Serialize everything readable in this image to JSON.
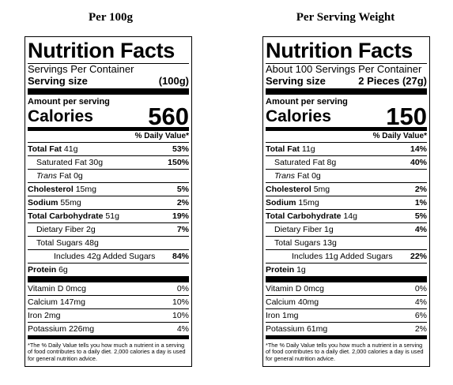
{
  "headings": {
    "left": "Per 100g",
    "right": "Per Serving Weight"
  },
  "labels": [
    {
      "title": "Nutrition Facts",
      "servings_per_container": "Servings Per Container",
      "serving_size_label": "Serving size",
      "serving_size_value": "(100g)",
      "amount_per_serving": "Amount per serving",
      "calories_label": "Calories",
      "calories_value": "560",
      "daily_value_header": "% Daily Value*",
      "rows": {
        "total_fat": {
          "name": "Total Fat",
          "amount": "41g",
          "dv": "53%"
        },
        "saturated_fat": {
          "name": "Saturated Fat",
          "amount": "30g",
          "dv": "150%"
        },
        "trans_fat": {
          "name": "Trans",
          "suffix": "Fat",
          "amount": "0g"
        },
        "cholesterol": {
          "name": "Cholesterol",
          "amount": "15mg",
          "dv": "5%"
        },
        "sodium": {
          "name": "Sodium",
          "amount": "55mg",
          "dv": "2%"
        },
        "total_carbohydrate": {
          "name": "Total Carbohydrate",
          "amount": "51g",
          "dv": "19%"
        },
        "dietary_fiber": {
          "name": "Dietary Fiber",
          "amount": "2g",
          "dv": "7%"
        },
        "total_sugars": {
          "name": "Total Sugars",
          "amount": "48g"
        },
        "added_sugars": {
          "name": "Includes 42g Added Sugars",
          "dv": "84%"
        },
        "protein": {
          "name": "Protein",
          "amount": "6g"
        },
        "vitamin_d": {
          "name": "Vitamin D",
          "amount": "0mcg",
          "dv": "0%"
        },
        "calcium": {
          "name": "Calcium",
          "amount": "147mg",
          "dv": "10%"
        },
        "iron": {
          "name": "Iron",
          "amount": "2mg",
          "dv": "10%"
        },
        "potassium": {
          "name": "Potassium",
          "amount": "226mg",
          "dv": "4%"
        }
      },
      "footnote": "*The % Daily Value tells you how much a nutrient in a serving of food contributes to a daily diet. 2,000 calories a day is used for general nutrition advice."
    },
    {
      "title": "Nutrition Facts",
      "servings_per_container": "About 100 Servings Per Container",
      "serving_size_label": "Serving size",
      "serving_size_value": "2 Pieces (27g)",
      "amount_per_serving": "Amount per serving",
      "calories_label": "Calories",
      "calories_value": "150",
      "daily_value_header": "% Daily Value*",
      "rows": {
        "total_fat": {
          "name": "Total Fat",
          "amount": "11g",
          "dv": "14%"
        },
        "saturated_fat": {
          "name": "Saturated Fat",
          "amount": "8g",
          "dv": "40%"
        },
        "trans_fat": {
          "name": "Trans",
          "suffix": "Fat",
          "amount": "0g"
        },
        "cholesterol": {
          "name": "Cholesterol",
          "amount": "5mg",
          "dv": "2%"
        },
        "sodium": {
          "name": "Sodium",
          "amount": "15mg",
          "dv": "1%"
        },
        "total_carbohydrate": {
          "name": "Total Carbohydrate",
          "amount": "14g",
          "dv": "5%"
        },
        "dietary_fiber": {
          "name": "Dietary Fiber",
          "amount": "1g",
          "dv": "4%"
        },
        "total_sugars": {
          "name": "Total Sugars",
          "amount": "13g"
        },
        "added_sugars": {
          "name": "Includes 11g Added Sugars",
          "dv": "22%"
        },
        "protein": {
          "name": "Protein",
          "amount": "1g"
        },
        "vitamin_d": {
          "name": "Vitamin D",
          "amount": "0mcg",
          "dv": "0%"
        },
        "calcium": {
          "name": "Calcium",
          "amount": "40mg",
          "dv": "4%"
        },
        "iron": {
          "name": "Iron",
          "amount": "1mg",
          "dv": "6%"
        },
        "potassium": {
          "name": "Potassium",
          "amount": "61mg",
          "dv": "2%"
        }
      },
      "footnote": "*The % Daily Value tells you how much a nutrient in a serving of food contributes to a daily diet. 2,000 calories a day is used for general nutrition advice."
    }
  ]
}
